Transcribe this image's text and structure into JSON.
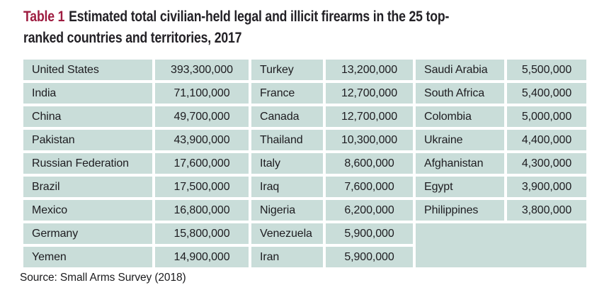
{
  "title": {
    "label": "Table 1",
    "line1": "Estimated total civilian-held legal and illicit firearms in the 25 top-",
    "line2": "ranked countries and territories, 2017"
  },
  "source_note": "Source: Small Arms Survey (2018)",
  "colors": {
    "accent_maroon": "#9e1c40",
    "cell_teal": "#c9ddd9",
    "text_dark": "#1d1c20",
    "page_background": "#ffffff"
  },
  "chart_data": {
    "type": "table",
    "title": "Table 1 Estimated total civilian-held legal and illicit firearms in the 25 top-ranked countries and territories, 2017",
    "groups": [
      {
        "rows": [
          {
            "country": "United States",
            "value": "393,300,000"
          },
          {
            "country": "India",
            "value": "71,100,000"
          },
          {
            "country": "China",
            "value": "49,700,000"
          },
          {
            "country": "Pakistan",
            "value": "43,900,000"
          },
          {
            "country": "Russian Federation",
            "value": "17,600,000"
          },
          {
            "country": "Brazil",
            "value": "17,500,000"
          },
          {
            "country": "Mexico",
            "value": "16,800,000"
          },
          {
            "country": "Germany",
            "value": "15,800,000"
          },
          {
            "country": "Yemen",
            "value": "14,900,000"
          }
        ]
      },
      {
        "rows": [
          {
            "country": "Turkey",
            "value": "13,200,000"
          },
          {
            "country": "France",
            "value": "12,700,000"
          },
          {
            "country": "Canada",
            "value": "12,700,000"
          },
          {
            "country": "Thailand",
            "value": "10,300,000"
          },
          {
            "country": "Italy",
            "value": "8,600,000"
          },
          {
            "country": "Iraq",
            "value": "7,600,000"
          },
          {
            "country": "Nigeria",
            "value": "6,200,000"
          },
          {
            "country": "Venezuela",
            "value": "5,900,000"
          },
          {
            "country": "Iran",
            "value": "5,900,000"
          }
        ]
      },
      {
        "rows": [
          {
            "country": "Saudi Arabia",
            "value": "5,500,000"
          },
          {
            "country": "South Africa",
            "value": "5,400,000"
          },
          {
            "country": "Colombia",
            "value": "5,000,000"
          },
          {
            "country": "Ukraine",
            "value": "4,400,000"
          },
          {
            "country": "Afghanistan",
            "value": "4,300,000"
          },
          {
            "country": "Egypt",
            "value": "3,900,000"
          },
          {
            "country": "Philippines",
            "value": "3,800,000"
          }
        ]
      }
    ]
  }
}
